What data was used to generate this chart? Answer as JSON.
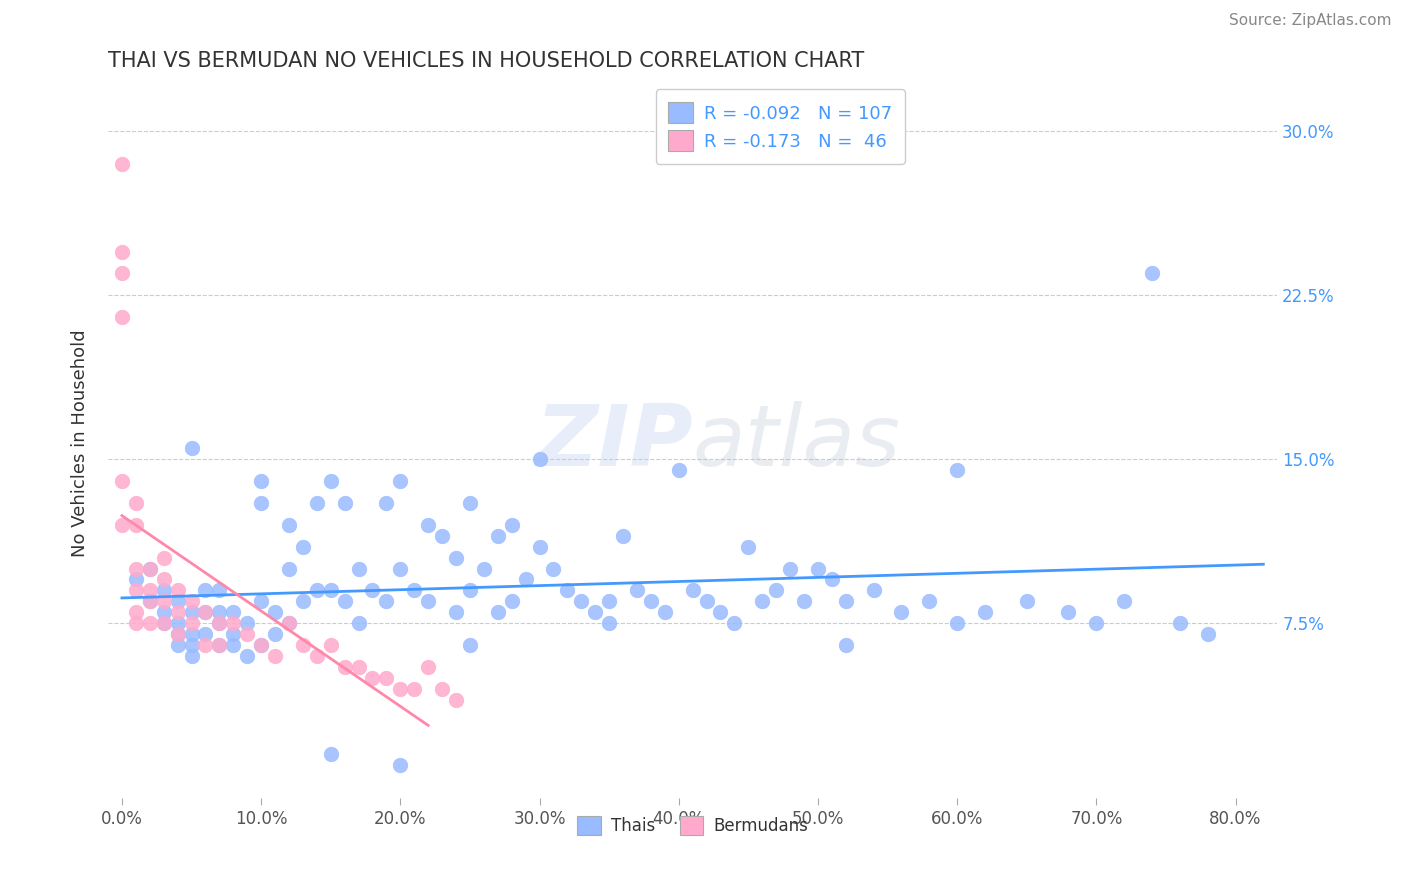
{
  "title": "THAI VS BERMUDAN NO VEHICLES IN HOUSEHOLD CORRELATION CHART",
  "source": "Source: ZipAtlas.com",
  "ylabel": "No Vehicles in Household",
  "yticks": [
    "7.5%",
    "15.0%",
    "22.5%",
    "30.0%"
  ],
  "ytick_vals": [
    0.075,
    0.15,
    0.225,
    0.3
  ],
  "xtick_vals": [
    0.0,
    0.1,
    0.2,
    0.3,
    0.4,
    0.5,
    0.6,
    0.7,
    0.8
  ],
  "xlim": [
    -0.01,
    0.83
  ],
  "ylim": [
    -0.005,
    0.32
  ],
  "thai_r": "-0.092",
  "thai_n": "107",
  "bermudan_r": "-0.173",
  "bermudan_n": "46",
  "thai_color": "#99bbff",
  "bermudan_color": "#ffaacc",
  "thai_line_color": "#4499ff",
  "bermudan_line_color": "#ff88aa",
  "watermark_zip": "ZIP",
  "watermark_atlas": "atlas",
  "thai_x": [
    0.01,
    0.02,
    0.02,
    0.03,
    0.03,
    0.03,
    0.04,
    0.04,
    0.04,
    0.04,
    0.05,
    0.05,
    0.05,
    0.05,
    0.06,
    0.06,
    0.06,
    0.07,
    0.07,
    0.07,
    0.07,
    0.08,
    0.08,
    0.08,
    0.09,
    0.09,
    0.1,
    0.1,
    0.1,
    0.11,
    0.11,
    0.12,
    0.12,
    0.12,
    0.13,
    0.13,
    0.14,
    0.14,
    0.15,
    0.15,
    0.16,
    0.16,
    0.17,
    0.17,
    0.18,
    0.19,
    0.19,
    0.2,
    0.2,
    0.21,
    0.22,
    0.22,
    0.23,
    0.24,
    0.24,
    0.25,
    0.25,
    0.26,
    0.27,
    0.27,
    0.28,
    0.28,
    0.29,
    0.3,
    0.31,
    0.32,
    0.33,
    0.34,
    0.35,
    0.36,
    0.37,
    0.38,
    0.39,
    0.4,
    0.41,
    0.42,
    0.43,
    0.44,
    0.45,
    0.46,
    0.47,
    0.48,
    0.49,
    0.5,
    0.51,
    0.52,
    0.54,
    0.56,
    0.58,
    0.6,
    0.62,
    0.65,
    0.68,
    0.7,
    0.72,
    0.74,
    0.76,
    0.78,
    0.52,
    0.6,
    0.05,
    0.1,
    0.15,
    0.2,
    0.25,
    0.3,
    0.35
  ],
  "thai_y": [
    0.095,
    0.085,
    0.1,
    0.09,
    0.08,
    0.075,
    0.07,
    0.075,
    0.085,
    0.065,
    0.08,
    0.07,
    0.065,
    0.06,
    0.09,
    0.08,
    0.07,
    0.09,
    0.08,
    0.075,
    0.065,
    0.08,
    0.07,
    0.065,
    0.075,
    0.06,
    0.14,
    0.13,
    0.085,
    0.08,
    0.07,
    0.12,
    0.1,
    0.075,
    0.11,
    0.085,
    0.13,
    0.09,
    0.14,
    0.09,
    0.13,
    0.085,
    0.1,
    0.075,
    0.09,
    0.13,
    0.085,
    0.14,
    0.1,
    0.09,
    0.12,
    0.085,
    0.115,
    0.105,
    0.08,
    0.13,
    0.09,
    0.1,
    0.115,
    0.08,
    0.12,
    0.085,
    0.095,
    0.11,
    0.1,
    0.09,
    0.085,
    0.08,
    0.075,
    0.115,
    0.09,
    0.085,
    0.08,
    0.145,
    0.09,
    0.085,
    0.08,
    0.075,
    0.11,
    0.085,
    0.09,
    0.1,
    0.085,
    0.1,
    0.095,
    0.085,
    0.09,
    0.08,
    0.085,
    0.075,
    0.08,
    0.085,
    0.08,
    0.075,
    0.085,
    0.235,
    0.075,
    0.07,
    0.065,
    0.145,
    0.155,
    0.065,
    0.015,
    0.01,
    0.065,
    0.15,
    0.085
  ],
  "bermudan_x": [
    0.0,
    0.0,
    0.0,
    0.0,
    0.0,
    0.0,
    0.01,
    0.01,
    0.01,
    0.01,
    0.01,
    0.01,
    0.02,
    0.02,
    0.02,
    0.02,
    0.03,
    0.03,
    0.03,
    0.03,
    0.04,
    0.04,
    0.04,
    0.05,
    0.05,
    0.06,
    0.06,
    0.07,
    0.07,
    0.08,
    0.09,
    0.1,
    0.11,
    0.12,
    0.13,
    0.14,
    0.15,
    0.16,
    0.17,
    0.18,
    0.19,
    0.2,
    0.21,
    0.22,
    0.23,
    0.24
  ],
  "bermudan_y": [
    0.285,
    0.245,
    0.235,
    0.215,
    0.14,
    0.12,
    0.13,
    0.12,
    0.1,
    0.09,
    0.08,
    0.075,
    0.1,
    0.09,
    0.085,
    0.075,
    0.105,
    0.095,
    0.085,
    0.075,
    0.09,
    0.08,
    0.07,
    0.085,
    0.075,
    0.08,
    0.065,
    0.075,
    0.065,
    0.075,
    0.07,
    0.065,
    0.06,
    0.075,
    0.065,
    0.06,
    0.065,
    0.055,
    0.055,
    0.05,
    0.05,
    0.045,
    0.045,
    0.055,
    0.045,
    0.04
  ]
}
